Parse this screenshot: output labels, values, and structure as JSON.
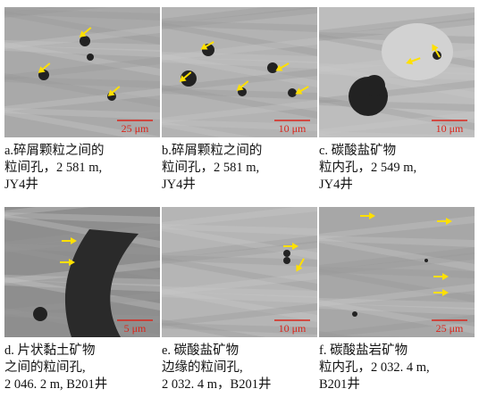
{
  "panels": [
    {
      "scale_bar": "25 μm",
      "caption": [
        "a.碎屑颗粒之间的",
        "粒间孔，2 581 m,",
        "JY4井"
      ]
    },
    {
      "scale_bar": "10 μm",
      "caption": [
        "b.碎屑颗粒之间的",
        "粒间孔，2 581 m,",
        "JY4井"
      ]
    },
    {
      "scale_bar": "10 μm",
      "caption": [
        "c. 碳酸盐矿物",
        "粒内孔，2 549 m,",
        "JY4井"
      ]
    },
    {
      "scale_bar": "5 μm",
      "caption": [
        "d. 片状黏土矿物",
        "之间的粒间孔,",
        "2 046. 2 m, B201井"
      ]
    },
    {
      "scale_bar": "10 μm",
      "caption": [
        "e. 碳酸盐矿物",
        "边缘的粒间孔,",
        "2 032. 4 m，B201井"
      ]
    },
    {
      "scale_bar": "25 μm",
      "caption": [
        "f. 碳酸盐岩矿物",
        "粒内孔，2 032. 4 m,",
        "B201井"
      ]
    }
  ]
}
